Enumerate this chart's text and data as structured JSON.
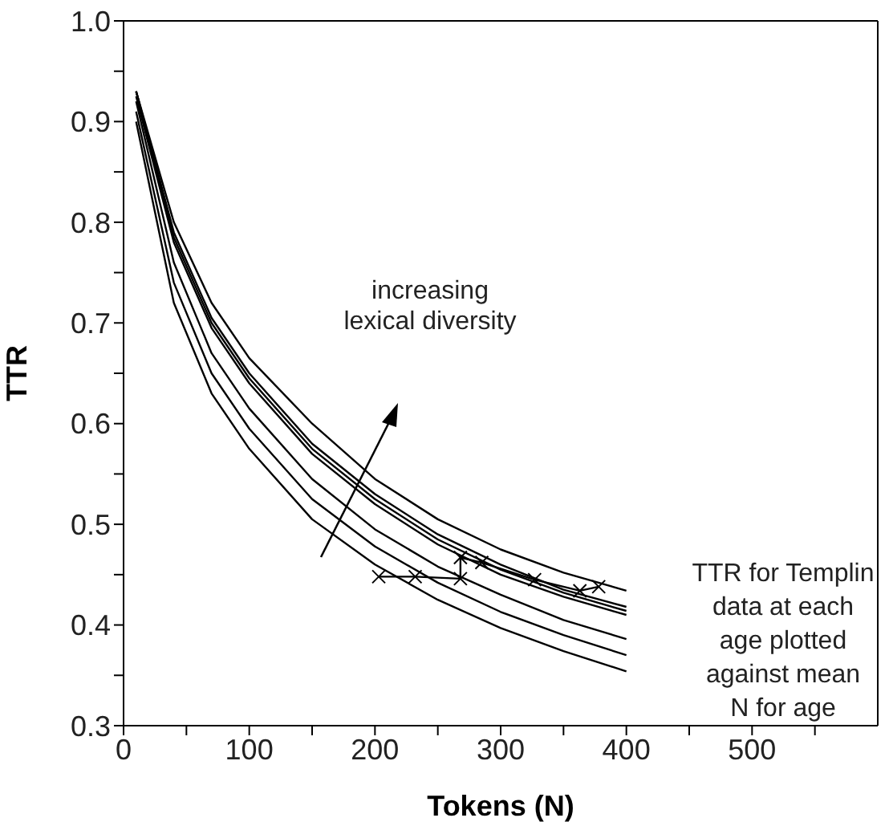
{
  "chart_data": {
    "type": "line",
    "xlabel": "Tokens (N)",
    "ylabel": "TTR",
    "xlim": [
      0,
      600
    ],
    "xticks": [
      0,
      {
        "value": 50,
        "label": null
      },
      100,
      {
        "value": 150,
        "label": null
      },
      200,
      {
        "value": 250,
        "label": null
      },
      300,
      {
        "value": 350,
        "label": null
      },
      400,
      {
        "value": 450,
        "label": null
      },
      500,
      {
        "value": 550,
        "label": null
      }
    ],
    "ylim": [
      0.3,
      1.0
    ],
    "yticks": [
      0.3,
      {
        "value": 0.35,
        "label": null
      },
      0.4,
      {
        "value": 0.45,
        "label": null
      },
      0.5,
      {
        "value": 0.55,
        "label": null
      },
      0.6,
      {
        "value": 0.65,
        "label": null
      },
      0.7,
      {
        "value": 0.75,
        "label": null
      },
      0.8,
      {
        "value": 0.85,
        "label": null
      },
      0.9,
      {
        "value": 0.95,
        "label": null
      },
      {
        "value": 1.0,
        "label": "1.0"
      }
    ],
    "marker": "none",
    "line_style": "solid",
    "x": [
      10,
      40,
      70,
      100,
      150,
      200,
      250,
      300,
      350,
      400
    ],
    "series": [
      {
        "color": "#000000",
        "values": [
          0.93,
          0.8,
          0.72,
          0.665,
          0.6,
          0.545,
          0.505,
          0.475,
          0.452,
          0.434
        ]
      },
      {
        "color": "#000000",
        "values": [
          0.93,
          0.79,
          0.705,
          0.65,
          0.58,
          0.53,
          0.49,
          0.46,
          0.435,
          0.418
        ]
      },
      {
        "color": "#000000",
        "values": [
          0.93,
          0.785,
          0.7,
          0.645,
          0.575,
          0.525,
          0.485,
          0.455,
          0.432,
          0.414
        ]
      },
      {
        "color": "#000000",
        "values": [
          0.925,
          0.78,
          0.695,
          0.64,
          0.57,
          0.52,
          0.48,
          0.45,
          0.428,
          0.41
        ]
      },
      {
        "color": "#000000",
        "values": [
          0.92,
          0.76,
          0.67,
          0.615,
          0.545,
          0.495,
          0.458,
          0.43,
          0.405,
          0.386
        ]
      },
      {
        "color": "#000000",
        "values": [
          0.91,
          0.74,
          0.65,
          0.595,
          0.525,
          0.478,
          0.442,
          0.413,
          0.39,
          0.37
        ]
      },
      {
        "color": "#000000",
        "values": [
          0.9,
          0.72,
          0.63,
          0.575,
          0.505,
          0.46,
          0.425,
          0.397,
          0.374,
          0.354
        ]
      },
      {
        "color": "#000000",
        "marker": "cross",
        "x": [
          203,
          232,
          268,
          268,
          285,
          327,
          363,
          378
        ],
        "values": [
          0.448,
          0.448,
          0.446,
          0.467,
          0.462,
          0.445,
          0.434,
          0.438
        ]
      }
    ],
    "annotations": [
      "increasing\nlexical diversity",
      "TTR for Templin\ndata at each\nage plotted\nagainst mean\nN for age"
    ]
  }
}
